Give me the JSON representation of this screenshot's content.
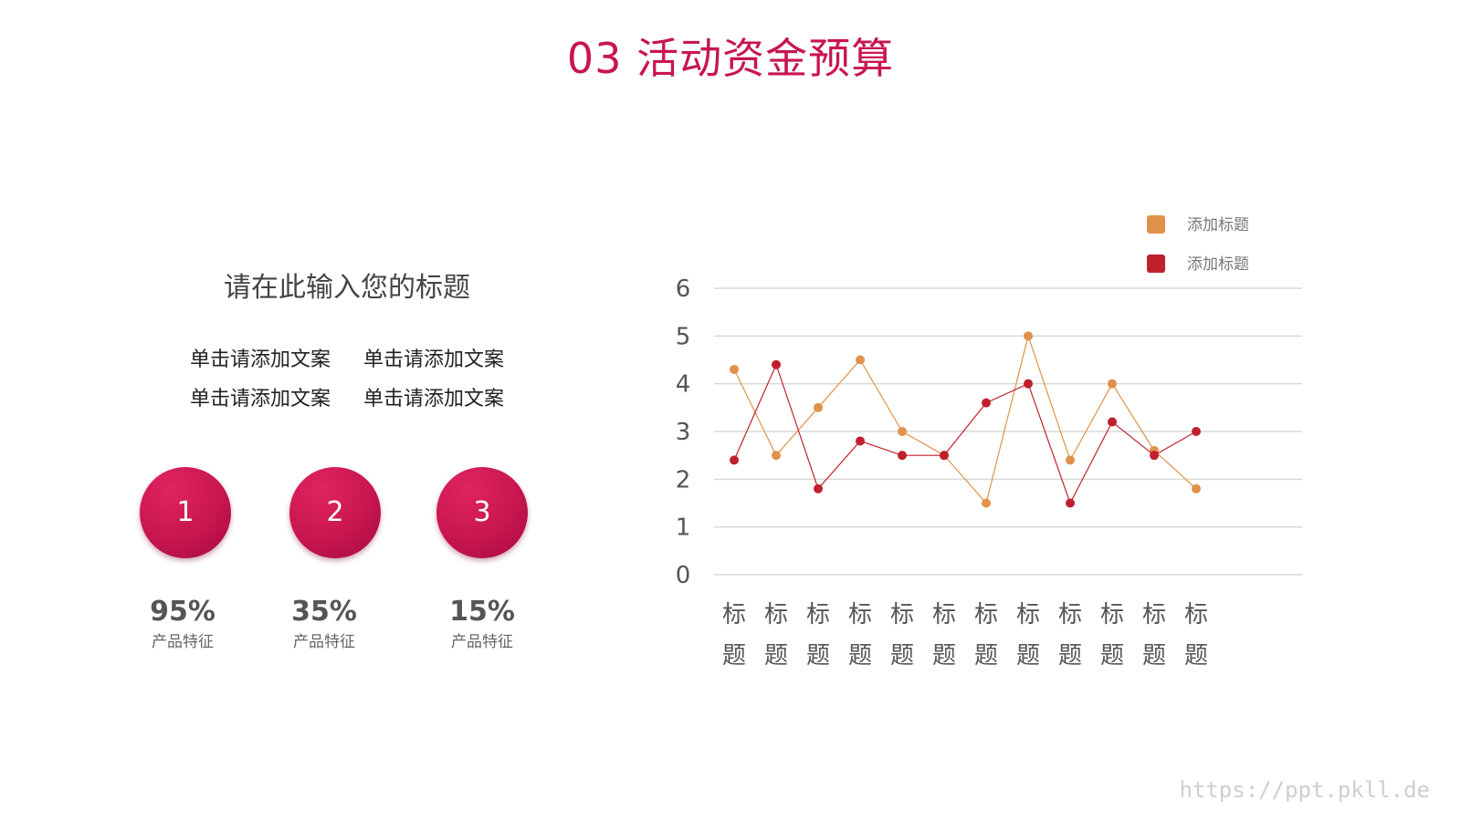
{
  "title": "03 活动资金预算",
  "left_panel": {
    "heading": "请在此输入您的标题",
    "captions": [
      "单击请添加文案",
      "单击请添加文案",
      "单击请添加文案",
      "单击请添加文案"
    ],
    "badges": [
      {
        "number": "1",
        "value": "95%",
        "label": "产品特征"
      },
      {
        "number": "2",
        "value": "35%",
        "label": "产品特征"
      },
      {
        "number": "3",
        "value": "15%",
        "label": "产品特征"
      }
    ]
  },
  "chart_data": {
    "type": "line",
    "categories": [
      "标题",
      "标题",
      "标题",
      "标题",
      "标题",
      "标题",
      "标题",
      "标题",
      "标题",
      "标题",
      "标题",
      "标题"
    ],
    "series": [
      {
        "name": "添加标题",
        "color": "#e0924a",
        "values": [
          4.3,
          2.5,
          3.5,
          4.5,
          3.0,
          2.5,
          1.5,
          5.0,
          2.4,
          4.0,
          2.6,
          1.8
        ]
      },
      {
        "name": "添加标题",
        "color": "#c0202e",
        "values": [
          2.4,
          4.4,
          1.8,
          2.8,
          2.5,
          2.5,
          3.6,
          4.0,
          1.5,
          3.2,
          2.5,
          3.0
        ]
      }
    ],
    "ylim": [
      0,
      6
    ],
    "yticks": [
      0,
      1,
      2,
      3,
      4,
      5,
      6
    ],
    "grid": true,
    "legend_position": "top-right"
  },
  "watermark": "https://ppt.pkll.de"
}
